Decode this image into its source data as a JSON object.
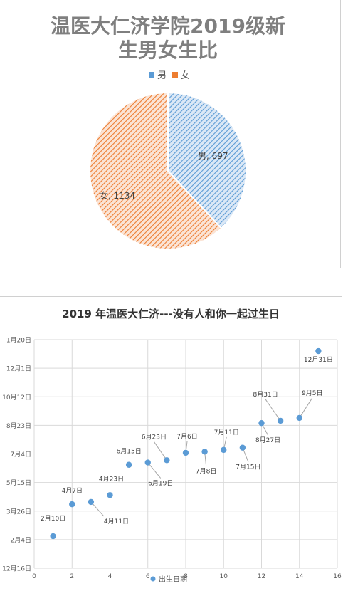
{
  "chart_data": [
    {
      "type": "pie",
      "title": "温医大仁济学院2019级新生男女生比",
      "title_lines": [
        "温医大仁济学院2019级新",
        "生男女生比"
      ],
      "legend": {
        "position": "top",
        "entries": [
          "男",
          "女"
        ]
      },
      "slices": [
        {
          "label": "男",
          "value": 697,
          "data_label": "男, 697",
          "color": "#5b9bd5",
          "pattern": "diagonal-hatch"
        },
        {
          "label": "女",
          "value": 1134,
          "data_label": "女, 1134",
          "color": "#ed7d31",
          "pattern": "diagonal-hatch"
        }
      ]
    },
    {
      "type": "scatter",
      "title": "2019 年温医大仁济---没有人和你一起过生日",
      "xlabel": "",
      "ylabel": "",
      "xlim": [
        0,
        16
      ],
      "x_ticks": [
        "0",
        "2",
        "4",
        "6",
        "8",
        "10",
        "12",
        "14",
        "16"
      ],
      "y_ticks": [
        "12月16日",
        "2月4日",
        "3月26日",
        "5月15日",
        "7月4日",
        "8月23日",
        "10月12日",
        "12月1日",
        "1月20日"
      ],
      "grid": true,
      "legend": {
        "position": "bottom",
        "entries": [
          "出生日期"
        ]
      },
      "series": [
        {
          "name": "出生日期",
          "color": "#5b9bd5",
          "points": [
            {
              "x": 1,
              "y": "2月10日",
              "label": "2月10日"
            },
            {
              "x": 2,
              "y": "4月7日",
              "label": "4月7日"
            },
            {
              "x": 3,
              "y": "4月11日",
              "label": "4月11日"
            },
            {
              "x": 4,
              "y": "4月23日",
              "label": "4月23日"
            },
            {
              "x": 5,
              "y": "6月15日",
              "label": "6月15日"
            },
            {
              "x": 6,
              "y": "6月19日",
              "label": "6月19日"
            },
            {
              "x": 7,
              "y": "6月23日",
              "label": "6月23日"
            },
            {
              "x": 8,
              "y": "7月6日",
              "label": "7月6日"
            },
            {
              "x": 9,
              "y": "7月8日",
              "label": "7月8日"
            },
            {
              "x": 10,
              "y": "7月11日",
              "label": "7月11日"
            },
            {
              "x": 11,
              "y": "7月15日",
              "label": "7月15日"
            },
            {
              "x": 12,
              "y": "8月27日",
              "label": "8月27日"
            },
            {
              "x": 13,
              "y": "8月31日",
              "label": "8月31日"
            },
            {
              "x": 14,
              "y": "9月5日",
              "label": "9月5日"
            },
            {
              "x": 15,
              "y": "12月31日",
              "label": "12月31日"
            }
          ]
        }
      ]
    }
  ]
}
